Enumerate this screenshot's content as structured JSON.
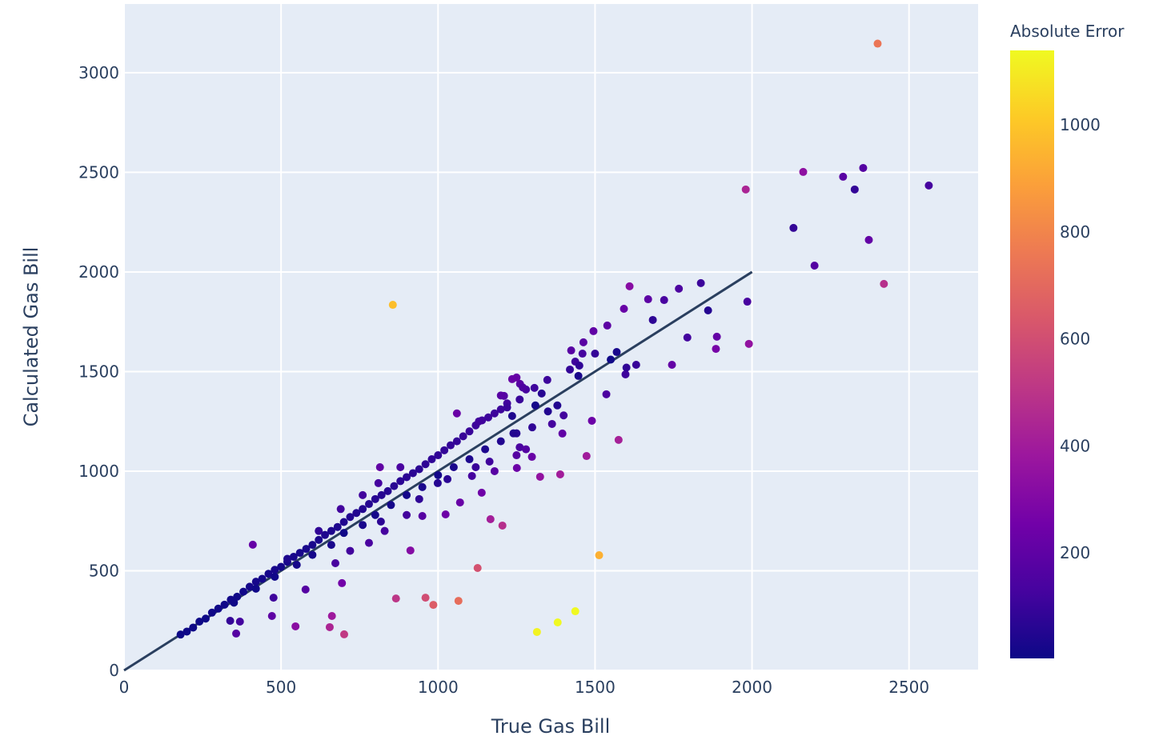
{
  "chart_data": {
    "type": "scatter",
    "xlabel": "True Gas Bill",
    "ylabel": "Calculated Gas Bill",
    "xlim": [
      0,
      2720
    ],
    "ylim": [
      0,
      3345
    ],
    "x_ticks": [
      0,
      500,
      1000,
      1500,
      2000,
      2500
    ],
    "y_ticks": [
      0,
      500,
      1000,
      1500,
      2000,
      2500,
      3000
    ],
    "grid": true,
    "colorbar": {
      "title": "Absolute Error",
      "range": [
        3,
        1139
      ],
      "ticks": [
        200,
        400,
        600,
        800,
        1000
      ],
      "colorscale": [
        "#0d0887",
        "#46039f",
        "#7201a8",
        "#9c179e",
        "#bd3786",
        "#d8576b",
        "#ed7953",
        "#fb9f3a",
        "#fdca26",
        "#f0f921"
      ]
    },
    "reference_line": {
      "x": [
        0,
        2000
      ],
      "y": [
        0,
        2000
      ],
      "color": "#2a3f5f"
    },
    "points": [
      [
        2400,
        3146
      ],
      [
        856,
        1835
      ],
      [
        2563,
        2434
      ],
      [
        2354,
        2522
      ],
      [
        2163,
        2502
      ],
      [
        2290,
        2478
      ],
      [
        2327,
        2414
      ],
      [
        1980,
        2414
      ],
      [
        2132,
        2221
      ],
      [
        2372,
        2161
      ],
      [
        2199,
        2032
      ],
      [
        2420,
        1940
      ],
      [
        1985,
        1851
      ],
      [
        1837,
        1944
      ],
      [
        1860,
        1807
      ],
      [
        1767,
        1916
      ],
      [
        1720,
        1859
      ],
      [
        1669,
        1863
      ],
      [
        1610,
        1928
      ],
      [
        1592,
        1815
      ],
      [
        1684,
        1759
      ],
      [
        1794,
        1671
      ],
      [
        1888,
        1675
      ],
      [
        1885,
        1614
      ],
      [
        1990,
        1639
      ],
      [
        1745,
        1534
      ],
      [
        1631,
        1534
      ],
      [
        1597,
        1486
      ],
      [
        1569,
        1598
      ],
      [
        1536,
        1386
      ],
      [
        1575,
        1157
      ],
      [
        1490,
        1253
      ],
      [
        1473,
        1076
      ],
      [
        1389,
        984
      ],
      [
        1325,
        972
      ],
      [
        1513,
        578
      ],
      [
        1437,
        297
      ],
      [
        1381,
        241
      ],
      [
        1315,
        193
      ],
      [
        1126,
        514
      ],
      [
        1065,
        349
      ],
      [
        985,
        329
      ],
      [
        960,
        365
      ],
      [
        866,
        361
      ],
      [
        1205,
        727
      ],
      [
        1167,
        759
      ],
      [
        701,
        181
      ],
      [
        655,
        217
      ],
      [
        662,
        273
      ],
      [
        546,
        221
      ],
      [
        471,
        273
      ],
      [
        694,
        438
      ],
      [
        410,
        631
      ],
      [
        357,
        185
      ],
      [
        369,
        245
      ],
      [
        338,
        249
      ],
      [
        476,
        365
      ],
      [
        578,
        406
      ],
      [
        673,
        538
      ],
      [
        912,
        602
      ],
      [
        818,
        747
      ],
      [
        815,
        1020
      ],
      [
        950,
        775
      ],
      [
        1024,
        783
      ],
      [
        1070,
        843
      ],
      [
        1139,
        892
      ],
      [
        1108,
        976
      ],
      [
        999,
        940
      ],
      [
        1164,
        1048
      ],
      [
        1251,
        1016
      ],
      [
        1299,
        1072
      ],
      [
        1363,
        1237
      ],
      [
        1396,
        1189
      ],
      [
        1437,
        1550
      ],
      [
        1424,
        1606
      ],
      [
        1447,
        1478
      ],
      [
        1495,
        1703
      ],
      [
        1539,
        1731
      ],
      [
        1463,
        1647
      ],
      [
        1348,
        1458
      ],
      [
        1307,
        1418
      ],
      [
        1236,
        1462
      ],
      [
        1261,
        1438
      ],
      [
        1210,
        1378
      ],
      [
        1236,
        1277
      ],
      [
        180,
        180
      ],
      [
        200,
        195
      ],
      [
        220,
        215
      ],
      [
        240,
        245
      ],
      [
        260,
        260
      ],
      [
        280,
        290
      ],
      [
        300,
        310
      ],
      [
        320,
        330
      ],
      [
        340,
        355
      ],
      [
        360,
        370
      ],
      [
        380,
        395
      ],
      [
        400,
        420
      ],
      [
        420,
        445
      ],
      [
        440,
        460
      ],
      [
        460,
        485
      ],
      [
        480,
        505
      ],
      [
        500,
        520
      ],
      [
        520,
        545
      ],
      [
        540,
        570
      ],
      [
        560,
        590
      ],
      [
        580,
        610
      ],
      [
        600,
        630
      ],
      [
        620,
        655
      ],
      [
        640,
        680
      ],
      [
        660,
        700
      ],
      [
        680,
        720
      ],
      [
        700,
        745
      ],
      [
        720,
        770
      ],
      [
        740,
        790
      ],
      [
        760,
        810
      ],
      [
        780,
        835
      ],
      [
        800,
        860
      ],
      [
        820,
        880
      ],
      [
        840,
        900
      ],
      [
        860,
        925
      ],
      [
        880,
        950
      ],
      [
        900,
        970
      ],
      [
        920,
        990
      ],
      [
        940,
        1010
      ],
      [
        960,
        1035
      ],
      [
        980,
        1060
      ],
      [
        1000,
        1080
      ],
      [
        1020,
        1105
      ],
      [
        1040,
        1130
      ],
      [
        1060,
        1150
      ],
      [
        1080,
        1175
      ],
      [
        1100,
        1200
      ],
      [
        1120,
        1230
      ],
      [
        1140,
        1255
      ],
      [
        1160,
        1270
      ],
      [
        1180,
        1290
      ],
      [
        1200,
        1310
      ],
      [
        1220,
        1340
      ],
      [
        1260,
        1360
      ],
      [
        1280,
        1410
      ],
      [
        1250,
        1470
      ],
      [
        1270,
        1420
      ],
      [
        350,
        340
      ],
      [
        420,
        410
      ],
      [
        480,
        470
      ],
      [
        550,
        530
      ],
      [
        600,
        580
      ],
      [
        660,
        630
      ],
      [
        700,
        690
      ],
      [
        760,
        730
      ],
      [
        800,
        780
      ],
      [
        850,
        830
      ],
      [
        900,
        880
      ],
      [
        950,
        920
      ],
      [
        1000,
        980
      ],
      [
        1050,
        1020
      ],
      [
        1100,
        1060
      ],
      [
        1150,
        1110
      ],
      [
        1200,
        1150
      ],
      [
        1250,
        1190
      ],
      [
        1300,
        1220
      ],
      [
        1350,
        1300
      ],
      [
        1400,
        1280
      ],
      [
        1450,
        1530
      ],
      [
        1500,
        1590
      ],
      [
        1550,
        1560
      ],
      [
        1600,
        1520
      ],
      [
        720,
        600
      ],
      [
        780,
        640
      ],
      [
        830,
        700
      ],
      [
        900,
        780
      ],
      [
        940,
        860
      ],
      [
        1030,
        960
      ],
      [
        1120,
        1020
      ],
      [
        1180,
        1000
      ],
      [
        1330,
        1390
      ],
      [
        1380,
        1330
      ],
      [
        1420,
        1510
      ],
      [
        1460,
        1590
      ],
      [
        1310,
        1330
      ],
      [
        520,
        560
      ],
      [
        620,
        700
      ],
      [
        690,
        810
      ],
      [
        760,
        880
      ],
      [
        810,
        940
      ],
      [
        880,
        1020
      ],
      [
        1060,
        1290
      ],
      [
        1130,
        1250
      ],
      [
        1200,
        1380
      ],
      [
        1220,
        1320
      ],
      [
        1240,
        1190
      ],
      [
        1260,
        1120
      ],
      [
        1280,
        1110
      ],
      [
        1250,
        1080
      ]
    ]
  }
}
